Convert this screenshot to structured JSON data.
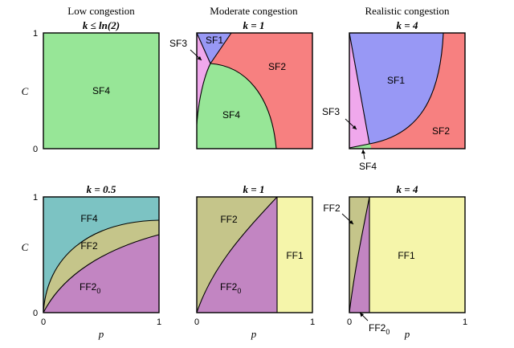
{
  "columns": [
    "Low congestion",
    "Moderate congestion",
    "Realistic congestion"
  ],
  "row1": {
    "titles": [
      "k ≤ ln(2)",
      "k = 1",
      "k = 4"
    ],
    "panel1": {
      "regions": [
        "SF4"
      ]
    },
    "panel2": {
      "regions": [
        "SF1",
        "SF2",
        "SF3",
        "SF4"
      ]
    },
    "panel3": {
      "regions": [
        "SF1",
        "SF2",
        "SF3",
        "SF4"
      ]
    }
  },
  "row2": {
    "titles": [
      "k = 0.5",
      "k = 1",
      "k = 4"
    ],
    "panel1": {
      "regions": [
        "FF4",
        "FF2"
      ],
      "ff20": {
        "base": "FF2",
        "sub": "0"
      }
    },
    "panel2": {
      "regions": [
        "FF2",
        "FF1"
      ],
      "ff20": {
        "base": "FF2",
        "sub": "0"
      }
    },
    "panel3": {
      "regions": [
        "FF2",
        "FF1"
      ],
      "ff20": {
        "base": "FF2",
        "sub": "0"
      }
    }
  },
  "axes": {
    "ylabel": "C",
    "xlabel": "p",
    "ticks": {
      "zero": "0",
      "one": "1"
    }
  },
  "colors": {
    "green": "#97e697",
    "blue": "#9898f5",
    "red": "#f78080",
    "pink": "#f0a8ec",
    "teal": "#7cc3c3",
    "olive": "#c5c58a",
    "purple": "#c285c2",
    "yellow": "#f5f5aa"
  }
}
